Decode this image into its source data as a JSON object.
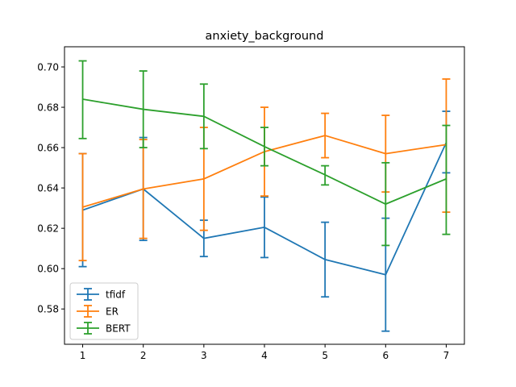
{
  "chart_data": {
    "type": "line",
    "title": "anxiety_background",
    "xlabel": "",
    "ylabel": "",
    "x": [
      1,
      2,
      3,
      4,
      5,
      6,
      7
    ],
    "xlim": [
      0.7,
      7.3
    ],
    "ylim": [
      0.5625,
      0.71
    ],
    "xticks": [
      1,
      2,
      3,
      4,
      5,
      6,
      7
    ],
    "yticks": [
      0.58,
      0.6,
      0.62,
      0.64,
      0.66,
      0.68,
      0.7
    ],
    "ytick_labels": [
      "0.58",
      "0.60",
      "0.62",
      "0.64",
      "0.66",
      "0.68",
      "0.70"
    ],
    "grid": false,
    "legend": "lower-left",
    "series": [
      {
        "name": "tfidf",
        "color": "#1f77b4",
        "values": [
          0.629,
          0.6395,
          0.615,
          0.6205,
          0.6045,
          0.597,
          0.6625
        ],
        "err_low": [
          0.601,
          0.614,
          0.606,
          0.6055,
          0.586,
          0.569,
          0.6475
        ],
        "err_high": [
          0.657,
          0.665,
          0.624,
          0.6355,
          0.623,
          0.625,
          0.678
        ]
      },
      {
        "name": "ER",
        "color": "#ff7f0e",
        "values": [
          0.6305,
          0.6395,
          0.6445,
          0.658,
          0.666,
          0.657,
          0.6615
        ],
        "err_low": [
          0.604,
          0.615,
          0.619,
          0.636,
          0.655,
          0.638,
          0.628
        ],
        "err_high": [
          0.657,
          0.664,
          0.67,
          0.68,
          0.677,
          0.676,
          0.694
        ]
      },
      {
        "name": "BERT",
        "color": "#2ca02c",
        "values": [
          0.684,
          0.679,
          0.6755,
          0.6605,
          0.6465,
          0.632,
          0.6445
        ],
        "err_low": [
          0.6645,
          0.66,
          0.6595,
          0.651,
          0.6415,
          0.6115,
          0.617
        ],
        "err_high": [
          0.703,
          0.698,
          0.6915,
          0.67,
          0.651,
          0.6525,
          0.671
        ]
      }
    ]
  }
}
